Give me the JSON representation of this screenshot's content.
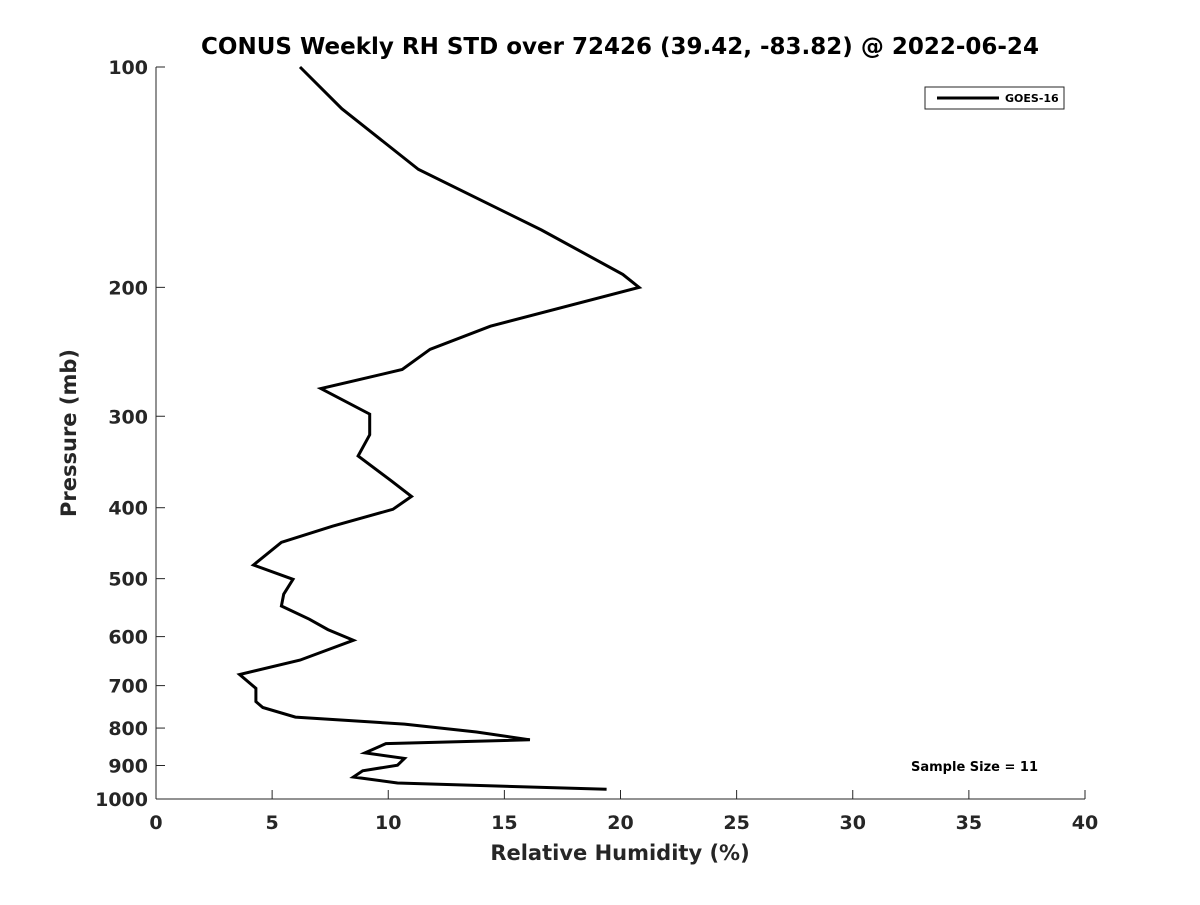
{
  "chart_data": {
    "type": "line",
    "title": "CONUS Weekly RH STD over 72426 (39.42, -83.82) @ 2022-06-24",
    "xlabel": "Relative Humidity (%)",
    "ylabel": "Pressure (mb)",
    "xlim": [
      0,
      40
    ],
    "ylim": [
      100,
      1000
    ],
    "y_scale": "log",
    "y_reversed": true,
    "grid": false,
    "legend_position": "top-right",
    "x_ticks": [
      0,
      5,
      10,
      15,
      20,
      25,
      30,
      35,
      40
    ],
    "y_ticks": [
      100,
      200,
      300,
      400,
      500,
      600,
      700,
      800,
      900,
      1000
    ],
    "series": [
      {
        "name": "GOES-16",
        "color": "#000000",
        "x": [
          6.2,
          8.0,
          11.3,
          16.6,
          20.1,
          20.8,
          14.4,
          11.8,
          10.6,
          7.1,
          9.2,
          9.2,
          8.7,
          10.1,
          11.0,
          10.2,
          7.6,
          5.4,
          4.2,
          5.9,
          5.5,
          5.4,
          6.6,
          7.4,
          8.5,
          6.2,
          3.6,
          4.3,
          4.3,
          4.6,
          6.0,
          10.7,
          13.8,
          16.1,
          9.9,
          9.0,
          10.7,
          10.4,
          8.9,
          8.5,
          10.4,
          19.4
        ],
        "y": [
          100,
          114,
          138,
          167,
          192,
          200,
          226,
          243,
          259,
          275,
          298,
          318,
          340,
          367,
          386,
          402,
          424,
          446,
          479,
          501,
          525,
          545,
          568,
          587,
          607,
          646,
          676,
          706,
          736,
          750,
          773,
          790,
          810,
          830,
          840,
          865,
          880,
          899,
          915,
          933,
          951,
          970
        ]
      }
    ],
    "annotations": [
      "Sample Size = 11"
    ]
  }
}
